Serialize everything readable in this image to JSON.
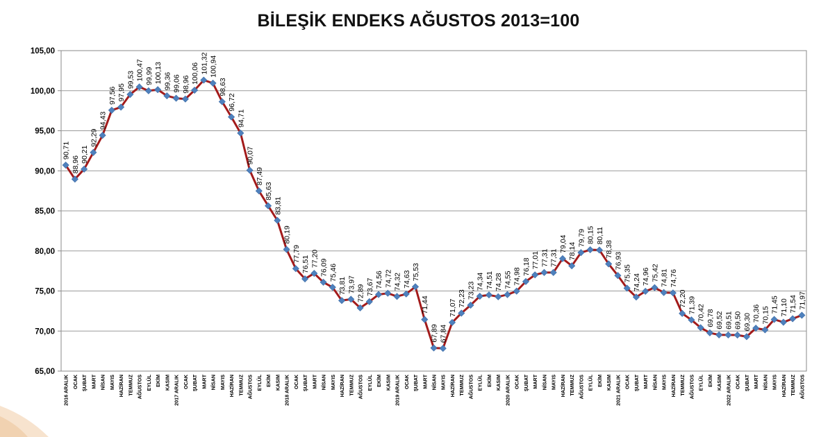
{
  "chart_data": {
    "type": "line",
    "title": "BİLEŞİK ENDEKS AĞUSTOS 2013=100",
    "ylim": [
      65,
      105
    ],
    "yticks": [
      "65,00",
      "70,00",
      "75,00",
      "80,00",
      "85,00",
      "90,00",
      "95,00",
      "100,00",
      "105,00"
    ],
    "grid": true,
    "legend": "none",
    "line_color": "#a31b1b",
    "marker_color": "#4f81bd",
    "categories": [
      "2016 ARALIK",
      "OCAK",
      "ŞUBAT",
      "MART",
      "NİSAN",
      "MAYIS",
      "HAZİRAN",
      "TEMMUZ",
      "AĞUSTOS",
      "EYLÜL",
      "EKİM",
      "KASIM",
      "2017 ARALIK",
      "OCAK",
      "ŞUBAT",
      "MART",
      "NİSAN",
      "MAYIS",
      "HAZİRAN",
      "TEMMUZ",
      "AĞUSTOS",
      "EYLÜL",
      "EKİM",
      "KASIM",
      "2018 ARALIK",
      "OCAK",
      "ŞUBAT",
      "MART",
      "NİSAN",
      "MAYIS",
      "HAZİRAN",
      "TEMMUZ",
      "AĞUSTOS",
      "EYLÜL",
      "EKİM",
      "KASIM",
      "2019 ARALIK",
      "OCAK",
      "ŞUBAT",
      "MART",
      "NİSAN",
      "MAYIS",
      "HAZİRAN",
      "TEMMUZ",
      "AĞUSTOS",
      "EYLÜL",
      "EKİM",
      "KASIM",
      "2020 ARALIK",
      "OCAK",
      "ŞUBAT",
      "MART",
      "NİSAN",
      "MAYIS",
      "HAZİRAN",
      "TEMMUZ",
      "AĞUSTOS",
      "EYLÜL",
      "EKİM",
      "KASIM",
      "2021 ARALIK",
      "OCAK",
      "ŞUBAT",
      "MART",
      "NİSAN",
      "MAYIS",
      "HAZİRAN",
      "TEMMUZ",
      "AĞUSTOS",
      "EYLÜL",
      "EKİM",
      "KASIM",
      "2022 ARALIK",
      "OCAK",
      "ŞUBAT",
      "MART",
      "NİSAN",
      "MAYIS",
      "HAZİRAN",
      "TEMMUZ",
      "AĞUSTOS"
    ],
    "values": [
      90.71,
      88.96,
      90.21,
      92.29,
      94.43,
      97.56,
      97.95,
      99.53,
      100.47,
      99.99,
      100.13,
      99.36,
      99.06,
      98.96,
      100.06,
      101.32,
      100.94,
      98.63,
      96.72,
      94.71,
      90.07,
      87.49,
      85.63,
      83.81,
      80.19,
      77.79,
      76.51,
      77.2,
      76.09,
      75.46,
      73.81,
      73.97,
      72.89,
      73.67,
      74.56,
      74.72,
      74.32,
      74.63,
      75.53,
      71.44,
      67.89,
      67.84,
      71.07,
      72.23,
      73.23,
      74.34,
      74.51,
      74.28,
      74.55,
      74.98,
      76.18,
      77.01,
      77.31,
      77.31,
      79.04,
      78.14,
      79.79,
      80.15,
      80.11,
      78.38,
      76.93,
      75.35,
      74.24,
      74.96,
      75.42,
      74.81,
      74.76,
      72.2,
      71.39,
      70.42,
      69.78,
      69.52,
      69.51,
      69.5,
      69.3,
      70.36,
      70.15,
      71.45,
      71.1,
      71.54,
      71.97
    ],
    "data_labels": [
      "90,71",
      "88,96",
      "90,21",
      "92,29",
      "94,43",
      "97,56",
      "97,95",
      "99,53",
      "100,47",
      "99,99",
      "100,13",
      "99,36",
      "99,06",
      "98,96",
      "100,06",
      "101,32",
      "100,94",
      "98,63",
      "96,72",
      "94,71",
      "90,07",
      "87,49",
      "85,63",
      "83,81",
      "80,19",
      "77,79",
      "76,51",
      "77,20",
      "76,09",
      "75,46",
      "73,81",
      "73,97",
      "72,89",
      "73,67",
      "74,56",
      "74,72",
      "74,32",
      "74,63",
      "75,53",
      "71,44",
      "67,89",
      "67,84",
      "71,07",
      "72,23",
      "73,23",
      "74,34",
      "74,51",
      "74,28",
      "74,55",
      "74,98",
      "76,18",
      "77,01",
      "77,31",
      "77,31",
      "79,04",
      "78,14",
      "79,79",
      "80,15",
      "80,11",
      "78,38",
      "76,93",
      "75,35",
      "74,24",
      "74,96",
      "75,42",
      "74,81",
      "74,76",
      "72,20",
      "71,39",
      "70,42",
      "69,78",
      "69,52",
      "69,51",
      "69,50",
      "69,30",
      "70,36",
      "70,15",
      "71,45",
      "71,10",
      "71,54",
      "71,97"
    ]
  }
}
